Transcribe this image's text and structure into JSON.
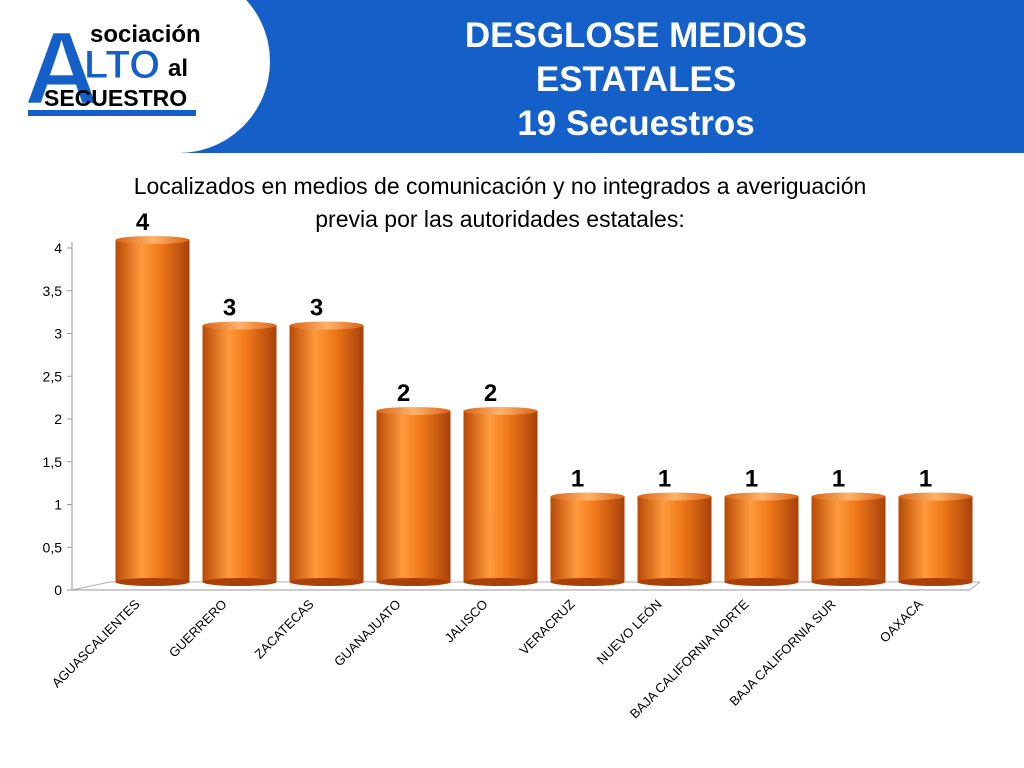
{
  "header": {
    "bg_color": "#1560c8",
    "logo": {
      "big_letter_a": "A",
      "line1": "sociación",
      "line2_big": "LTO",
      "line2_small": "al",
      "line3": "SECUESTRO"
    },
    "title_lines": [
      "DESGLOSE MEDIOS",
      "ESTATALES",
      "19 Secuestros"
    ]
  },
  "subtitle_lines": [
    "Localizados en medios de comunicación y no integrados a averiguación",
    "previa por las autoridades estatales:"
  ],
  "chart_data": {
    "type": "bar",
    "style": "3d-cylinder",
    "bar_color": "#f07a1a",
    "categories": [
      "AGUASCALIENTES",
      "GUERRERO",
      "ZACATECAS",
      "GUANAJUATO",
      "JALISCO",
      "VERACRUZ",
      "NUEVO LEÓN",
      "BAJA CALIFORNIA NORTE",
      "BAJA CALIFORNIA SUR",
      "OAXACA"
    ],
    "values": [
      4,
      3,
      3,
      2,
      2,
      1,
      1,
      1,
      1,
      1
    ],
    "data_labels": [
      "4",
      "3",
      "3",
      "2",
      "2",
      "1",
      "1",
      "1",
      "1",
      "1"
    ],
    "yticks": [
      0,
      0.5,
      1,
      1.5,
      2,
      2.5,
      3,
      3.5,
      4
    ],
    "ytick_labels": [
      "0",
      "0,5",
      "1",
      "1,5",
      "2",
      "2,5",
      "3",
      "3,5",
      "4"
    ],
    "ylim": [
      0,
      4
    ],
    "grid": false,
    "legend": "none"
  }
}
